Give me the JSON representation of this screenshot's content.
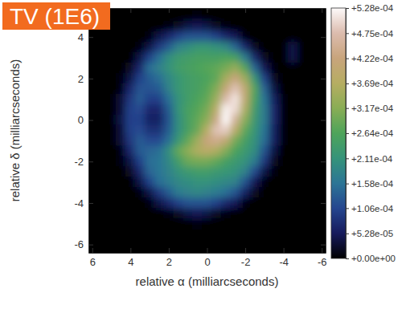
{
  "chart_data": {
    "type": "heatmap",
    "title": "TV (1E6)",
    "x_label": "relative α (milliarcseconds)",
    "y_label": "relative δ (milliarcseconds)",
    "xlim": [
      6.2,
      -6.2
    ],
    "ylim": [
      -6.4,
      5.4
    ],
    "xticks": [
      6,
      4,
      2,
      0,
      -2,
      -4,
      -6
    ],
    "yticks": [
      4,
      2,
      0,
      -2,
      -4,
      -6
    ],
    "x": [
      5,
      4.5,
      4,
      3.5,
      3,
      2.5,
      2,
      1.5,
      1,
      0.5,
      0,
      -0.5,
      -1,
      -1.5,
      -2,
      -2.5,
      -3,
      -3.5,
      -4,
      -4.5,
      -5
    ],
    "y": [
      5,
      4.5,
      4,
      3.5,
      3,
      2.5,
      2,
      1.5,
      1,
      0.5,
      0,
      -0.5,
      -1,
      -1.5,
      -2,
      -2.5,
      -3,
      -3.5,
      -4,
      -4.5,
      -5
    ],
    "z": [
      [
        0,
        0,
        0,
        0,
        0,
        0,
        0,
        0,
        0,
        1e-05,
        0,
        0,
        0,
        0,
        0,
        0,
        0,
        0,
        0,
        0,
        0
      ],
      [
        0,
        0,
        0,
        0,
        0,
        0,
        1e-05,
        2e-05,
        4e-05,
        5e-05,
        4e-05,
        2e-05,
        1e-05,
        0,
        0,
        0,
        0,
        0,
        0,
        0,
        0
      ],
      [
        0,
        0,
        0,
        0,
        1e-05,
        4e-05,
        7e-05,
        0.0001,
        0.00012,
        0.00012,
        0.00012,
        0.0001,
        7e-05,
        5e-05,
        1e-05,
        0,
        0,
        0,
        0,
        0,
        0
      ],
      [
        0,
        0,
        0,
        1e-05,
        4e-05,
        9e-05,
        0.00013,
        0.00018,
        0.0002,
        0.00022,
        0.00022,
        0.00021,
        0.00019,
        0.00014,
        7e-05,
        2e-05,
        0,
        0,
        0,
        4e-05,
        0
      ],
      [
        0,
        0,
        0,
        4e-05,
        0.0001,
        0.00015,
        0.0002,
        0.00023,
        0.00024,
        0.00025,
        0.00025,
        0.00025,
        0.00026,
        0.00025,
        0.00017,
        7e-05,
        2e-05,
        0,
        0,
        4e-05,
        0
      ],
      [
        0,
        0,
        2e-05,
        7e-05,
        0.00015,
        0.00018,
        0.00021,
        0.00024,
        0.00025,
        0.00026,
        0.00027,
        0.00028,
        0.0003,
        0.00033,
        0.00027,
        0.00014,
        5e-05,
        1e-05,
        0,
        0,
        0
      ],
      [
        0,
        1e-05,
        4e-05,
        0.0001,
        0.00013,
        0.00015,
        0.00019,
        0.00022,
        0.00024,
        0.00025,
        0.00026,
        0.00028,
        0.00035,
        0.00042,
        0.00034,
        0.00022,
        0.0001,
        2e-05,
        0,
        0,
        0
      ],
      [
        0,
        1e-05,
        7e-05,
        0.00012,
        0.00012,
        0.00013,
        0.00018,
        0.00022,
        0.00024,
        0.00025,
        0.00027,
        0.00031,
        0.00041,
        0.00048,
        0.0004,
        0.00027,
        0.00014,
        4e-05,
        0,
        0,
        0
      ],
      [
        0,
        3e-05,
        9e-05,
        0.00013,
        0.0001,
        0.0001,
        0.00015,
        0.00021,
        0.00024,
        0.00026,
        0.00028,
        0.00034,
        0.00047,
        0.00051,
        0.0004,
        0.00026,
        0.00016,
        6e-05,
        1e-05,
        0,
        0
      ],
      [
        0,
        3e-05,
        0.0001,
        0.00011,
        7e-05,
        7e-05,
        0.00013,
        0.00021,
        0.00025,
        0.00027,
        0.0003,
        0.00038,
        0.00052,
        0.0005,
        0.00036,
        0.00024,
        0.00017,
        7e-05,
        1e-05,
        0,
        0
      ],
      [
        0,
        4e-05,
        0.0001,
        0.0001,
        6e-05,
        6e-05,
        0.00012,
        0.0002,
        0.00025,
        0.00028,
        0.00032,
        0.00043,
        0.000528,
        0.00045,
        0.00032,
        0.00023,
        0.00017,
        7e-05,
        1e-05,
        0,
        0
      ],
      [
        0,
        3e-05,
        0.0001,
        0.00011,
        8e-05,
        8e-05,
        0.00013,
        0.0002,
        0.00025,
        0.00029,
        0.00037,
        0.00048,
        0.00049,
        0.00038,
        0.00028,
        0.00022,
        0.00016,
        6e-05,
        1e-05,
        0,
        0
      ],
      [
        0,
        3e-05,
        9e-05,
        0.00013,
        0.00011,
        0.00011,
        0.00015,
        0.00022,
        0.00028,
        0.00034,
        0.00042,
        0.00044,
        0.0004,
        0.0003,
        0.00025,
        0.00021,
        0.00015,
        6e-05,
        1e-05,
        0,
        0
      ],
      [
        0,
        1e-05,
        7e-05,
        0.00013,
        0.00014,
        0.00015,
        0.0002,
        0.00028,
        0.00032,
        0.00036,
        0.00038,
        0.00036,
        0.00031,
        0.00026,
        0.00023,
        0.0002,
        0.00012,
        4e-05,
        0,
        0,
        0
      ],
      [
        0,
        1e-05,
        4e-05,
        0.0001,
        0.00015,
        0.00016,
        0.00019,
        0.00024,
        0.00029,
        0.0003,
        0.0003,
        0.00028,
        0.00025,
        0.00023,
        0.00021,
        0.00017,
        9e-05,
        2e-05,
        0,
        0,
        0
      ],
      [
        0,
        0,
        2e-05,
        7e-05,
        0.00014,
        0.00016,
        0.00018,
        0.00021,
        0.00023,
        0.00024,
        0.00024,
        0.00023,
        0.00022,
        0.00021,
        0.00018,
        0.00011,
        4e-05,
        1e-05,
        0,
        0,
        0
      ],
      [
        0,
        0,
        0,
        4e-05,
        0.0001,
        0.00015,
        0.00017,
        0.00019,
        0.0002,
        0.00021,
        0.00021,
        0.0002,
        0.00019,
        0.00018,
        0.00012,
        5e-05,
        1e-05,
        0,
        0,
        0,
        0
      ],
      [
        0,
        0,
        0,
        1e-05,
        4e-05,
        9e-05,
        0.00013,
        0.00017,
        0.00018,
        0.00019,
        0.00018,
        0.00017,
        0.00015,
        0.00012,
        6e-05,
        2e-05,
        0,
        0,
        0,
        0,
        0
      ],
      [
        0,
        0,
        0,
        0,
        1e-05,
        4e-05,
        7e-05,
        0.0001,
        0.00012,
        0.00012,
        0.00012,
        0.0001,
        7e-05,
        5e-05,
        1e-05,
        0,
        0,
        0,
        0,
        0,
        0
      ],
      [
        0,
        0,
        0,
        0,
        0,
        0,
        1e-05,
        2e-05,
        4e-05,
        5e-05,
        4e-05,
        2e-05,
        1e-05,
        0,
        0,
        0,
        0,
        0,
        0,
        0,
        0
      ],
      [
        0,
        0,
        0,
        0,
        0,
        0,
        0,
        0,
        0,
        1e-05,
        0,
        0,
        0,
        0,
        0,
        0,
        0,
        0,
        0,
        0,
        0
      ]
    ],
    "clim": [
      0,
      0.000528
    ],
    "cticks": [
      {
        "value": 0.000528,
        "label": "+5.28e-04"
      },
      {
        "value": 0.000475,
        "label": "+4.75e-04"
      },
      {
        "value": 0.000422,
        "label": "+4.22e-04"
      },
      {
        "value": 0.000369,
        "label": "+3.69e-04"
      },
      {
        "value": 0.000317,
        "label": "+3.17e-04"
      },
      {
        "value": 0.000264,
        "label": "+2.64e-04"
      },
      {
        "value": 0.000211,
        "label": "+2.11e-04"
      },
      {
        "value": 0.000158,
        "label": "+1.58e-04"
      },
      {
        "value": 0.000106,
        "label": "+1.06e-04"
      },
      {
        "value": 5.28e-05,
        "label": "+5.28e-05"
      },
      {
        "value": 0,
        "label": "+0.00e+00"
      }
    ]
  }
}
